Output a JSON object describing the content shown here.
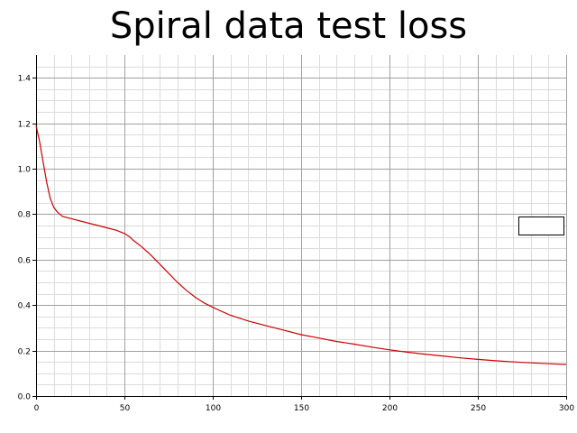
{
  "chart_data": {
    "type": "line",
    "title": "Spiral data test loss",
    "xlabel": "",
    "ylabel": "",
    "xlim": [
      0,
      300
    ],
    "ylim": [
      0,
      1.5
    ],
    "xticks": [
      0,
      50,
      100,
      150,
      200,
      250,
      300
    ],
    "yticks": [
      0.0,
      0.2,
      0.4,
      0.6,
      0.8,
      1.0,
      1.2,
      1.4
    ],
    "xtick_labels": [
      "0",
      "50",
      "100",
      "150",
      "200",
      "250",
      "300"
    ],
    "ytick_labels": [
      "0.0",
      "0.2",
      "0.4",
      "0.6",
      "0.8",
      "1.0",
      "1.2",
      "1.4"
    ],
    "grid": true,
    "legend": "right, empty box",
    "colors": {
      "series": "#cc0000",
      "grid_major": "#a0a0a0",
      "grid_minor": "#dcdcdc"
    },
    "series": [
      {
        "x": [
          0,
          2,
          4,
          6,
          8,
          10,
          12,
          15,
          20,
          25,
          30,
          35,
          40,
          45,
          50,
          53,
          55,
          60,
          65,
          70,
          75,
          80,
          85,
          90,
          95,
          100,
          110,
          120,
          130,
          140,
          150,
          160,
          170,
          180,
          190,
          200,
          210,
          220,
          230,
          240,
          250,
          260,
          270,
          280,
          290,
          300
        ],
        "y": [
          1.19,
          1.12,
          1.03,
          0.94,
          0.87,
          0.83,
          0.81,
          0.79,
          0.78,
          0.77,
          0.76,
          0.75,
          0.74,
          0.73,
          0.715,
          0.7,
          0.685,
          0.655,
          0.62,
          0.58,
          0.54,
          0.5,
          0.465,
          0.435,
          0.41,
          0.39,
          0.355,
          0.33,
          0.31,
          0.29,
          0.27,
          0.255,
          0.24,
          0.228,
          0.215,
          0.203,
          0.193,
          0.184,
          0.176,
          0.168,
          0.161,
          0.155,
          0.15,
          0.146,
          0.142,
          0.139
        ]
      }
    ]
  }
}
